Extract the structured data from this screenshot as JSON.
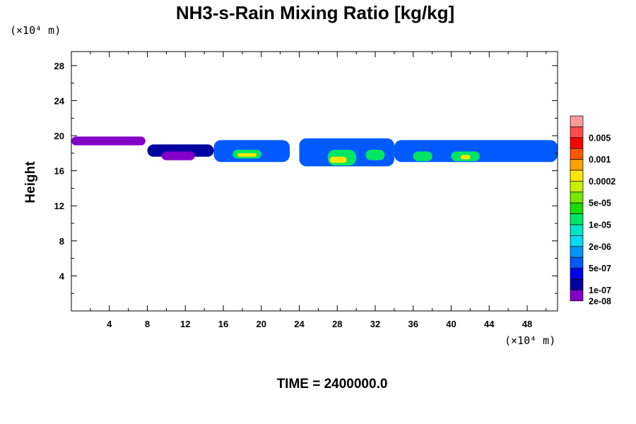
{
  "chart_data": {
    "type": "heatmap",
    "title": "NH3-s-Rain Mixing Ratio [kg/kg]",
    "ylabel": "Height",
    "x_unit_label": "(×10⁴ m)",
    "y_unit_label": "(×10⁴ m)",
    "time_label": "TIME = 2400000.0",
    "xlim": [
      0,
      51.2
    ],
    "ylim": [
      0,
      29.6
    ],
    "x_ticks": [
      "4",
      "8",
      "12",
      "16",
      "20",
      "24",
      "28",
      "32",
      "36",
      "40",
      "44",
      "48"
    ],
    "x_tick_values": [
      4,
      8,
      12,
      16,
      20,
      24,
      28,
      32,
      36,
      40,
      44,
      48
    ],
    "y_ticks": [
      "4",
      "8",
      "12",
      "16",
      "20",
      "24",
      "28"
    ],
    "y_tick_values": [
      4,
      8,
      12,
      16,
      20,
      24,
      28
    ],
    "colorbar": {
      "colors": [
        "#ff9b9b",
        "#ff4b4b",
        "#ff0000",
        "#ff5800",
        "#ffa000",
        "#ffe600",
        "#c8f000",
        "#78e600",
        "#19dc00",
        "#00e664",
        "#00e6c8",
        "#00dcf5",
        "#0096ff",
        "#005aff",
        "#0000f0",
        "#0000a0",
        "#8200c8"
      ],
      "labels": [
        "0.005",
        "0.001",
        "0.0002",
        "5e-05",
        "1e-05",
        "2e-06",
        "5e-07",
        "1e-07",
        "2e-08"
      ],
      "label_levels": [
        1,
        3,
        5,
        7,
        9,
        11,
        13,
        15,
        16
      ]
    },
    "field_regions": [
      {
        "x": [
          0,
          7.8
        ],
        "y": [
          18.9,
          19.9
        ],
        "level": 16
      },
      {
        "x": [
          8,
          15
        ],
        "y": [
          17.6,
          19.0
        ],
        "level": 15
      },
      {
        "x": [
          9.5,
          13
        ],
        "y": [
          17.2,
          18.2
        ],
        "level": 16
      },
      {
        "x": [
          15,
          23
        ],
        "y": [
          17.0,
          19.5
        ],
        "level": 13
      },
      {
        "x": [
          17,
          20
        ],
        "y": [
          17.4,
          18.4
        ],
        "level": 9
      },
      {
        "x": [
          17.5,
          19.5
        ],
        "y": [
          17.6,
          18.0
        ],
        "level": 5
      },
      {
        "x": [
          24,
          34
        ],
        "y": [
          16.5,
          19.7
        ],
        "level": 13
      },
      {
        "x": [
          27,
          30
        ],
        "y": [
          16.6,
          18.4
        ],
        "level": 9
      },
      {
        "x": [
          27.2,
          29
        ],
        "y": [
          16.9,
          17.6
        ],
        "level": 5
      },
      {
        "x": [
          31,
          33
        ],
        "y": [
          17.2,
          18.4
        ],
        "level": 9
      },
      {
        "x": [
          34,
          51.2
        ],
        "y": [
          17.0,
          19.5
        ],
        "level": 13
      },
      {
        "x": [
          36,
          38
        ],
        "y": [
          17.1,
          18.2
        ],
        "level": 9
      },
      {
        "x": [
          40,
          43
        ],
        "y": [
          17.1,
          18.2
        ],
        "level": 9
      },
      {
        "x": [
          41,
          42
        ],
        "y": [
          17.3,
          17.8
        ],
        "level": 5
      }
    ]
  }
}
